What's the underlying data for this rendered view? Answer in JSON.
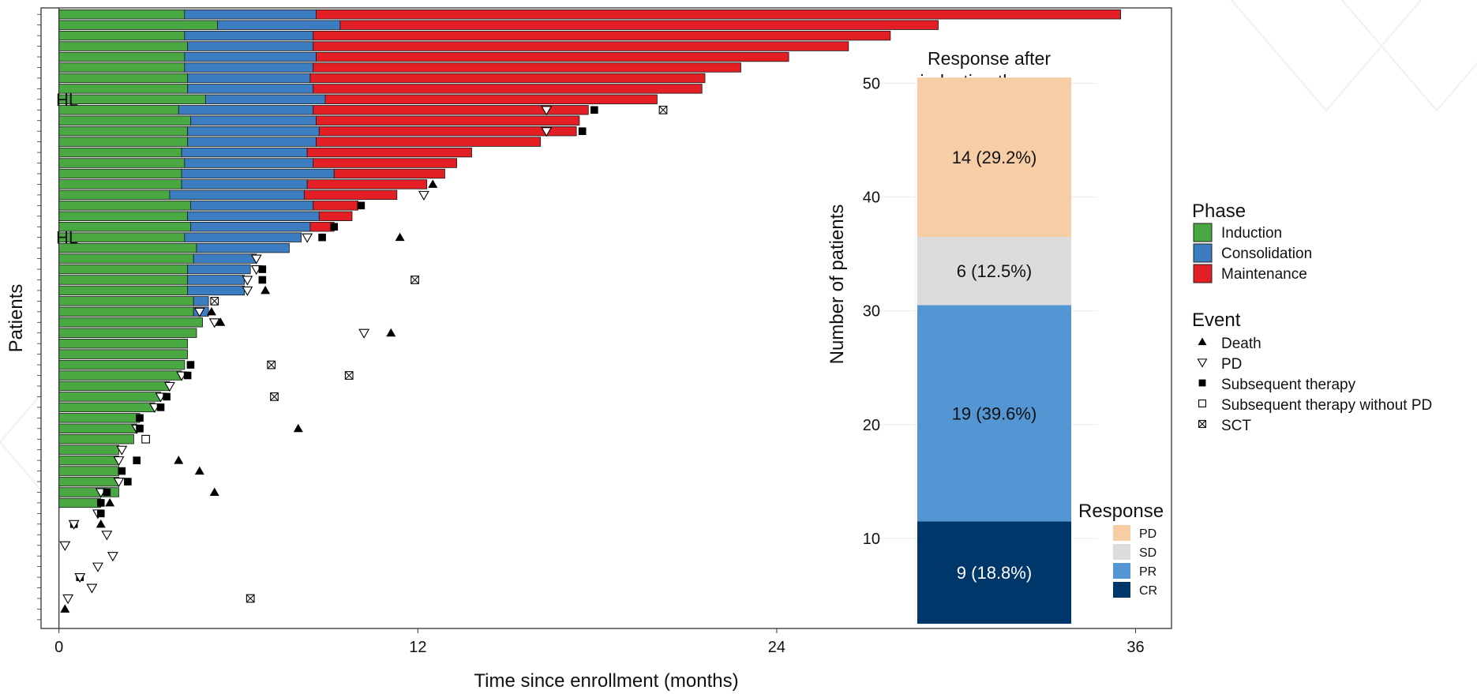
{
  "chart_data": [
    {
      "type": "bar",
      "subtype": "swimmer-plot",
      "xlabel": "Time since enrollment (months)",
      "ylabel": "Patients",
      "xlim": [
        -0.6,
        37.2
      ],
      "xticks": [
        0,
        12,
        24,
        36
      ],
      "row_tick_count": 58,
      "row_labels": [
        {
          "row": 8,
          "text": "HL"
        },
        {
          "row": 21,
          "text": "HL"
        }
      ],
      "colors": {
        "Induction": "#4aa843",
        "Consolidation": "#3b7dc0",
        "Maintenance": "#e31e24"
      },
      "patients": [
        {
          "induction": 4.2,
          "consolidation": 8.6,
          "maintenance": 35.5
        },
        {
          "induction": 5.3,
          "consolidation": 9.4,
          "maintenance": 29.4
        },
        {
          "induction": 4.2,
          "consolidation": 8.5,
          "maintenance": 27.8
        },
        {
          "induction": 4.3,
          "consolidation": 8.5,
          "maintenance": 26.4
        },
        {
          "induction": 4.2,
          "consolidation": 8.6,
          "maintenance": 24.4
        },
        {
          "induction": 4.2,
          "consolidation": 8.5,
          "maintenance": 22.8
        },
        {
          "induction": 4.3,
          "consolidation": 8.4,
          "maintenance": 21.6
        },
        {
          "induction": 4.3,
          "consolidation": 8.5,
          "maintenance": 21.5
        },
        {
          "induction": 4.9,
          "consolidation": 8.9,
          "maintenance": 20.0
        },
        {
          "induction": 4.0,
          "consolidation": 8.5,
          "maintenance": 17.7
        },
        {
          "induction": 4.4,
          "consolidation": 8.6,
          "maintenance": 17.4
        },
        {
          "induction": 4.3,
          "consolidation": 8.7,
          "maintenance": 17.3
        },
        {
          "induction": 4.3,
          "consolidation": 8.6,
          "maintenance": 16.1
        },
        {
          "induction": 4.1,
          "consolidation": 8.3,
          "maintenance": 13.8
        },
        {
          "induction": 4.2,
          "consolidation": 8.5,
          "maintenance": 13.3
        },
        {
          "induction": 4.1,
          "consolidation": 9.2,
          "maintenance": 12.9
        },
        {
          "induction": 4.1,
          "consolidation": 8.3,
          "maintenance": 12.3
        },
        {
          "induction": 3.7,
          "consolidation": 8.2,
          "maintenance": 11.3
        },
        {
          "induction": 4.4,
          "consolidation": 8.5,
          "maintenance": 10.0
        },
        {
          "induction": 4.3,
          "consolidation": 8.7,
          "maintenance": 9.8
        },
        {
          "induction": 4.4,
          "consolidation": 8.4,
          "maintenance": 9.2
        },
        {
          "induction": 4.2,
          "consolidation": 8.1,
          "maintenance": null
        },
        {
          "induction": 4.6,
          "consolidation": 7.7,
          "maintenance": null
        },
        {
          "induction": 4.5,
          "consolidation": 6.6,
          "maintenance": null
        },
        {
          "induction": 4.3,
          "consolidation": 6.4,
          "maintenance": null
        },
        {
          "induction": 4.3,
          "consolidation": 6.2,
          "maintenance": null
        },
        {
          "induction": 4.3,
          "consolidation": 6.2,
          "maintenance": null
        },
        {
          "induction": 4.5,
          "consolidation": 5.0,
          "maintenance": null
        },
        {
          "induction": 4.5,
          "consolidation": 5.0,
          "maintenance": null
        },
        {
          "induction": 4.8,
          "consolidation": null,
          "maintenance": null
        },
        {
          "induction": 4.6,
          "consolidation": null,
          "maintenance": null
        },
        {
          "induction": 4.3,
          "consolidation": null,
          "maintenance": null
        },
        {
          "induction": 4.3,
          "consolidation": null,
          "maintenance": null
        },
        {
          "induction": 4.2,
          "consolidation": null,
          "maintenance": null
        },
        {
          "induction": 4.1,
          "consolidation": null,
          "maintenance": null
        },
        {
          "induction": 3.7,
          "consolidation": null,
          "maintenance": null
        },
        {
          "induction": 3.4,
          "consolidation": null,
          "maintenance": null
        },
        {
          "induction": 3.2,
          "consolidation": null,
          "maintenance": null
        },
        {
          "induction": 2.7,
          "consolidation": null,
          "maintenance": null
        },
        {
          "induction": 2.6,
          "consolidation": null,
          "maintenance": null
        },
        {
          "induction": 2.5,
          "consolidation": null,
          "maintenance": null
        },
        {
          "induction": 2.0,
          "consolidation": null,
          "maintenance": null
        },
        {
          "induction": 2.0,
          "consolidation": null,
          "maintenance": null
        },
        {
          "induction": 2.0,
          "consolidation": null,
          "maintenance": null
        },
        {
          "induction": 2.0,
          "consolidation": null,
          "maintenance": null
        },
        {
          "induction": 2.0,
          "consolidation": null,
          "maintenance": null
        },
        {
          "induction": 1.4,
          "consolidation": null,
          "maintenance": null
        },
        {
          "induction": null,
          "consolidation": null,
          "maintenance": null
        },
        {
          "induction": null,
          "consolidation": null,
          "maintenance": null
        },
        {
          "induction": null,
          "consolidation": null,
          "maintenance": null
        },
        {
          "induction": null,
          "consolidation": null,
          "maintenance": null
        },
        {
          "induction": null,
          "consolidation": null,
          "maintenance": null
        },
        {
          "induction": null,
          "consolidation": null,
          "maintenance": null
        },
        {
          "induction": null,
          "consolidation": null,
          "maintenance": null
        },
        {
          "induction": null,
          "consolidation": null,
          "maintenance": null
        },
        {
          "induction": null,
          "consolidation": null,
          "maintenance": null
        },
        {
          "induction": null,
          "consolidation": null,
          "maintenance": null
        }
      ],
      "events": [
        {
          "row": 9,
          "x": 16.3,
          "type": "PD"
        },
        {
          "row": 9,
          "x": 17.9,
          "type": "Subsequent therapy"
        },
        {
          "row": 9,
          "x": 20.2,
          "type": "SCT"
        },
        {
          "row": 11,
          "x": 16.3,
          "type": "PD"
        },
        {
          "row": 11,
          "x": 17.5,
          "type": "Subsequent therapy"
        },
        {
          "row": 16,
          "x": 12.5,
          "type": "Death"
        },
        {
          "row": 17,
          "x": 12.2,
          "type": "PD"
        },
        {
          "row": 18,
          "x": 10.1,
          "type": "Subsequent therapy"
        },
        {
          "row": 20,
          "x": 9.2,
          "type": "Subsequent therapy"
        },
        {
          "row": 21,
          "x": 11.4,
          "type": "Death"
        },
        {
          "row": 21,
          "x": 8.3,
          "type": "PD"
        },
        {
          "row": 21,
          "x": 8.8,
          "type": "Subsequent therapy"
        },
        {
          "row": 23,
          "x": 6.6,
          "type": "PD"
        },
        {
          "row": 24,
          "x": 6.6,
          "type": "PD"
        },
        {
          "row": 24,
          "x": 6.8,
          "type": "Subsequent therapy"
        },
        {
          "row": 25,
          "x": 6.3,
          "type": "PD"
        },
        {
          "row": 25,
          "x": 6.8,
          "type": "Subsequent therapy"
        },
        {
          "row": 25,
          "x": 11.9,
          "type": "SCT"
        },
        {
          "row": 26,
          "x": 6.3,
          "type": "PD"
        },
        {
          "row": 26,
          "x": 6.9,
          "type": "Death"
        },
        {
          "row": 27,
          "x": 5.2,
          "type": "SCT"
        },
        {
          "row": 28,
          "x": 4.7,
          "type": "PD"
        },
        {
          "row": 28,
          "x": 5.1,
          "type": "Death"
        },
        {
          "row": 29,
          "x": 5.2,
          "type": "PD"
        },
        {
          "row": 29,
          "x": 5.4,
          "type": "Death"
        },
        {
          "row": 30,
          "x": 10.2,
          "type": "PD"
        },
        {
          "row": 30,
          "x": 11.1,
          "type": "Death"
        },
        {
          "row": 33,
          "x": 4.4,
          "type": "Subsequent therapy"
        },
        {
          "row": 33,
          "x": 7.1,
          "type": "SCT"
        },
        {
          "row": 34,
          "x": 4.1,
          "type": "PD"
        },
        {
          "row": 34,
          "x": 4.3,
          "type": "Subsequent therapy"
        },
        {
          "row": 34,
          "x": 9.7,
          "type": "SCT"
        },
        {
          "row": 35,
          "x": 3.7,
          "type": "PD"
        },
        {
          "row": 36,
          "x": 3.4,
          "type": "PD"
        },
        {
          "row": 36,
          "x": 3.6,
          "type": "Subsequent therapy"
        },
        {
          "row": 36,
          "x": 7.2,
          "type": "SCT"
        },
        {
          "row": 37,
          "x": 3.2,
          "type": "PD"
        },
        {
          "row": 37,
          "x": 3.4,
          "type": "Subsequent therapy"
        },
        {
          "row": 38,
          "x": 2.7,
          "type": "Subsequent therapy"
        },
        {
          "row": 39,
          "x": 2.6,
          "type": "PD"
        },
        {
          "row": 39,
          "x": 2.7,
          "type": "Subsequent therapy"
        },
        {
          "row": 39,
          "x": 8.0,
          "type": "Death"
        },
        {
          "row": 40,
          "x": 2.9,
          "type": "Subsequent therapy without PD"
        },
        {
          "row": 41,
          "x": 2.1,
          "type": "PD"
        },
        {
          "row": 42,
          "x": 2.6,
          "type": "Subsequent therapy"
        },
        {
          "row": 42,
          "x": 4.0,
          "type": "Death"
        },
        {
          "row": 42,
          "x": 2.0,
          "type": "PD"
        },
        {
          "row": 43,
          "x": 2.1,
          "type": "Subsequent therapy"
        },
        {
          "row": 43,
          "x": 4.7,
          "type": "Death"
        },
        {
          "row": 44,
          "x": 2.0,
          "type": "PD"
        },
        {
          "row": 44,
          "x": 2.3,
          "type": "Subsequent therapy"
        },
        {
          "row": 45,
          "x": 1.4,
          "type": "PD"
        },
        {
          "row": 45,
          "x": 1.6,
          "type": "Subsequent therapy"
        },
        {
          "row": 45,
          "x": 5.2,
          "type": "Death"
        },
        {
          "row": 46,
          "x": 1.4,
          "type": "Subsequent therapy"
        },
        {
          "row": 46,
          "x": 1.7,
          "type": "Death"
        },
        {
          "row": 47,
          "x": 1.3,
          "type": "PD"
        },
        {
          "row": 47,
          "x": 1.4,
          "type": "Subsequent therapy"
        },
        {
          "row": 48,
          "x": 0.5,
          "type": "Subsequent therapy"
        },
        {
          "row": 48,
          "x": 0.5,
          "type": "PD"
        },
        {
          "row": 48,
          "x": 1.4,
          "type": "Death"
        },
        {
          "row": 49,
          "x": 1.6,
          "type": "PD"
        },
        {
          "row": 50,
          "x": 0.2,
          "type": "PD"
        },
        {
          "row": 51,
          "x": 1.8,
          "type": "PD"
        },
        {
          "row": 52,
          "x": 1.3,
          "type": "PD"
        },
        {
          "row": 53,
          "x": 0.7,
          "type": "Subsequent therapy"
        },
        {
          "row": 53,
          "x": 0.7,
          "type": "PD"
        },
        {
          "row": 54,
          "x": 1.1,
          "type": "PD"
        },
        {
          "row": 55,
          "x": 0.3,
          "type": "PD"
        },
        {
          "row": 55,
          "x": 6.4,
          "type": "SCT"
        },
        {
          "row": 56,
          "x": 0.2,
          "type": "Death"
        }
      ],
      "legend_phase": {
        "title": "Phase",
        "items": [
          {
            "label": "Induction",
            "color": "#4aa843"
          },
          {
            "label": "Consolidation",
            "color": "#3b7dc0"
          },
          {
            "label": "Maintenance",
            "color": "#e31e24"
          }
        ]
      },
      "legend_event": {
        "title": "Event",
        "items": [
          {
            "label": "Death",
            "symbol": "triangle-up"
          },
          {
            "label": "PD",
            "symbol": "triangle-down-open"
          },
          {
            "label": "Subsequent therapy",
            "symbol": "square-filled"
          },
          {
            "label": "Subsequent therapy without PD",
            "symbol": "square-open"
          },
          {
            "label": "SCT",
            "symbol": "square-crossed"
          }
        ]
      }
    },
    {
      "type": "bar",
      "subtype": "stacked",
      "title_lines": [
        "Response after",
        "induction therapy"
      ],
      "ylabel": "Number of patients",
      "ylim": [
        2.5,
        53.5
      ],
      "yticks": [
        10,
        20,
        30,
        40,
        50
      ],
      "grid": true,
      "segments": [
        {
          "name": "CR",
          "value": 9,
          "label": "9 (18.8%)",
          "color": "#00376b",
          "text_color": "#ffffff"
        },
        {
          "name": "PR",
          "value": 19,
          "label": "19 (39.6%)",
          "color": "#5495d3",
          "text_color": "#111111"
        },
        {
          "name": "SD",
          "value": 6,
          "label": "6 (12.5%)",
          "color": "#dcdcdc",
          "text_color": "#111111"
        },
        {
          "name": "PD",
          "value": 14,
          "label": "14 (29.2%)",
          "color": "#f7cda6",
          "text_color": "#111111"
        }
      ],
      "legend": {
        "title": "Response",
        "items": [
          {
            "label": "PD",
            "color": "#f7cda6"
          },
          {
            "label": "SD",
            "color": "#dcdcdc"
          },
          {
            "label": "PR",
            "color": "#5495d3"
          },
          {
            "label": "CR",
            "color": "#00376b"
          }
        ]
      }
    }
  ]
}
